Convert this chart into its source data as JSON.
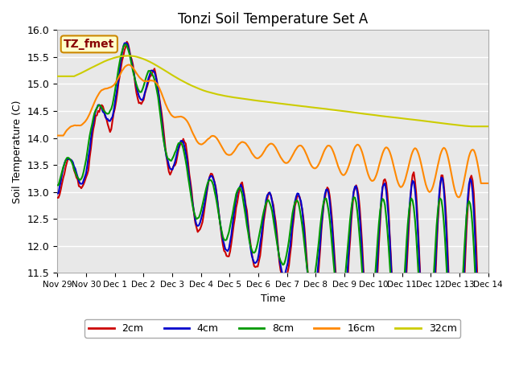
{
  "title": "Tonzi Soil Temperature Set A",
  "xlabel": "Time",
  "ylabel": "Soil Temperature (C)",
  "ylim": [
    11.5,
    16.0
  ],
  "annotation_text": "TZ_fmet",
  "annotation_bbox_facecolor": "#ffffcc",
  "annotation_bbox_edgecolor": "#cc8800",
  "background_color": "#ffffff",
  "plot_bg_color": "#e8e8e8",
  "grid_color": "#ffffff",
  "series_colors": {
    "2cm": "#cc0000",
    "4cm": "#0000cc",
    "8cm": "#009900",
    "16cm": "#ff8800",
    "32cm": "#cccc00"
  },
  "series_linewidth": 1.5,
  "xtick_labels": [
    "Nov 29",
    "Nov 30",
    "Dec 1",
    "Dec 2",
    "Dec 3",
    "Dec 4",
    "Dec 5",
    "Dec 6",
    "Dec 7",
    "Dec 8",
    "Dec 9",
    "Dec 10",
    "Dec 11",
    "Dec 12",
    "Dec 13",
    "Dec 14"
  ],
  "title_fontsize": 12,
  "axis_fontsize": 9,
  "legend_fontsize": 9
}
